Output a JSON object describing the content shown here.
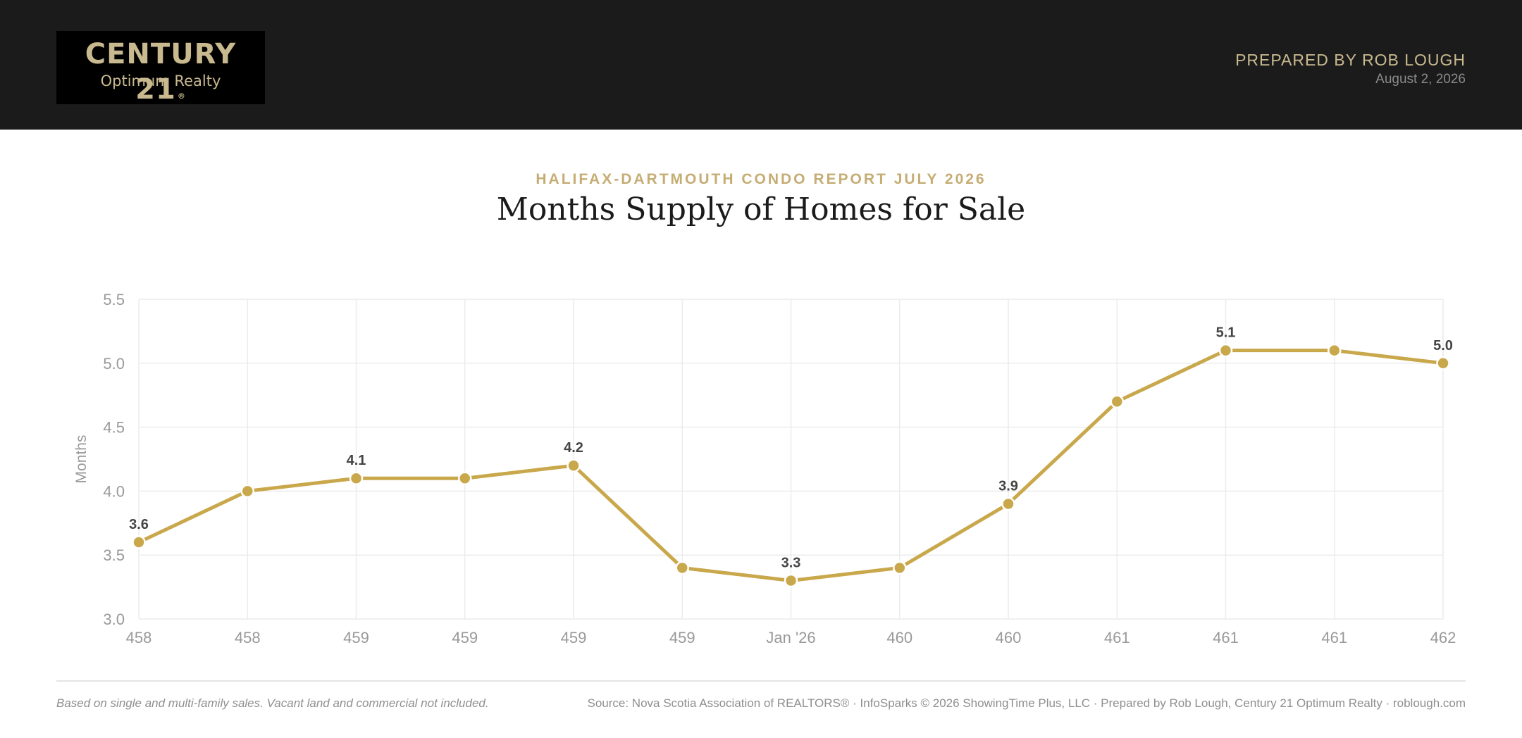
{
  "header": {
    "brand": "CENTURY 21",
    "brand_mark": "®",
    "brand_sub": "Optimum Realty",
    "prepared_by": "PREPARED BY ROB LOUGH",
    "date": "August 2, 2026"
  },
  "report": {
    "eyebrow": "HALIFAX-DARTMOUTH CONDO REPORT JULY 2026",
    "title": "Months Supply of Homes for Sale"
  },
  "footer": {
    "note": "Based on single and multi-family sales. Vacant land and commercial not included.",
    "source": "Source: Nova Scotia Association of REALTORS® · InfoSparks © 2026 ShowingTime Plus, LLC · Prepared by Rob Lough, Century 21 Optimum Realty · roblough.com"
  },
  "colors": {
    "background": "#ffffff",
    "header_bg": "#1b1b1b",
    "gold": "#c9a84c",
    "accent_text": "#c5ad74",
    "grid": "#ececec",
    "axis_text": "#999999",
    "label_text": "#444444"
  },
  "chart_data": {
    "type": "line",
    "title": "Months Supply of Homes for Sale",
    "xlabel": "",
    "ylabel": "Months",
    "categories": [
      "458",
      "458",
      "459",
      "459",
      "459",
      "459",
      "Jan '26",
      "460",
      "460",
      "461",
      "461",
      "461",
      "462"
    ],
    "series": [
      {
        "values": [
          3.6,
          4.0,
          4.1,
          4.1,
          4.2,
          3.4,
          3.3,
          3.4,
          3.9,
          4.7,
          5.1,
          5.1,
          5.0
        ]
      }
    ],
    "data_labels": [
      "3.6",
      "",
      "4.1",
      "",
      "4.2",
      "",
      "3.3",
      "",
      "3.9",
      "",
      "5.1",
      "",
      "5.0"
    ],
    "ylim": [
      3.0,
      5.5
    ],
    "yticks": [
      "3.0",
      "3.5",
      "4.0",
      "4.5",
      "5.0",
      "5.5"
    ],
    "grid": true,
    "legend": "none"
  }
}
